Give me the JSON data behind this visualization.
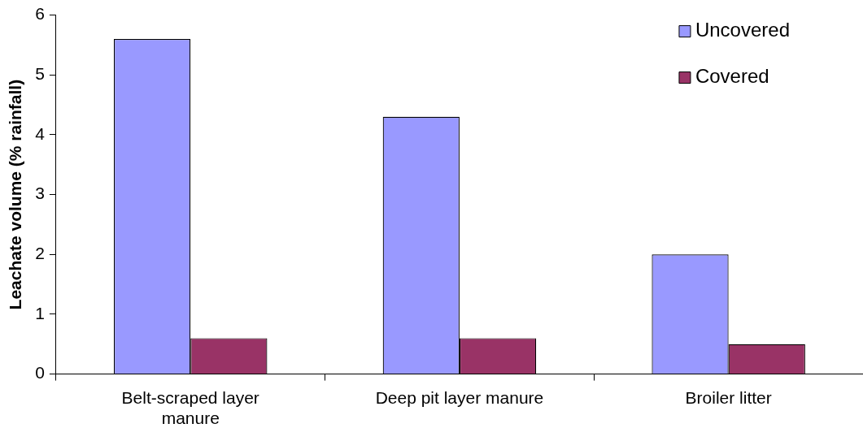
{
  "chart_data": {
    "type": "bar",
    "ylabel": "Leachate volume (% rainfall)",
    "categories": [
      "Belt-scraped layer manure",
      "Deep pit layer manure",
      "Broiler litter"
    ],
    "series": [
      {
        "name": "Uncovered",
        "color": "#9999ff",
        "values": [
          5.6,
          4.3,
          2.0
        ]
      },
      {
        "name": "Covered",
        "color": "#993366",
        "values": [
          0.6,
          0.6,
          0.5
        ]
      }
    ],
    "ylim": [
      0,
      6
    ],
    "yticks": [
      0,
      1,
      2,
      3,
      4,
      5,
      6
    ],
    "grid": false,
    "legend": "top right"
  }
}
